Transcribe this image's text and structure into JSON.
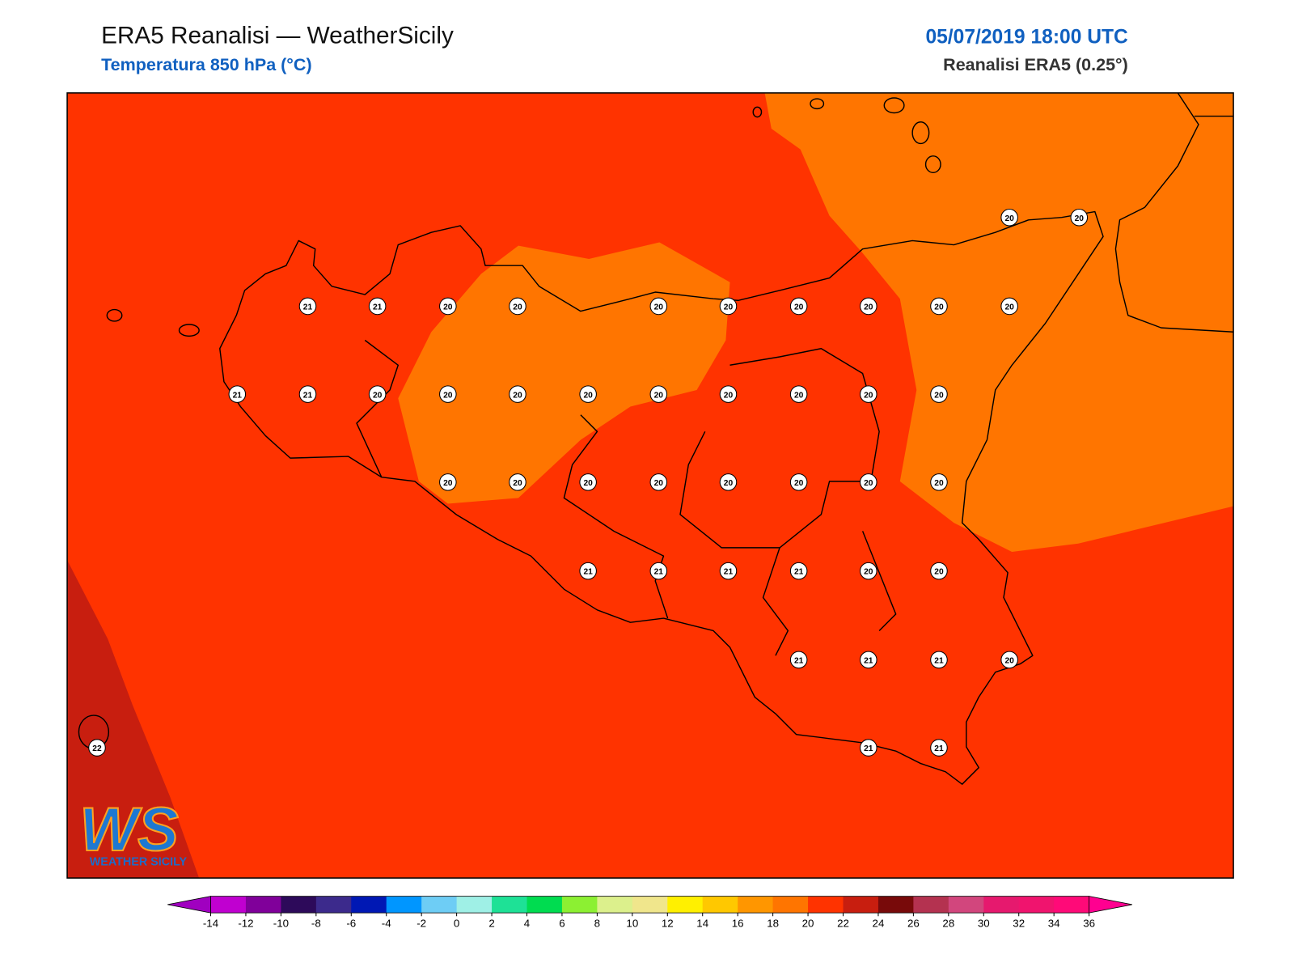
{
  "header": {
    "title": "ERA5 Reanalisi — WeatherSicily",
    "subtitle": "Temperatura 850 hPa (°C)",
    "date": "05/07/2019 18:00 UTC",
    "source": "Reanalisi ERA5 (0.25°)"
  },
  "stations": [
    20,
    20,
    21,
    21,
    20,
    20,
    20,
    20,
    20,
    20,
    20,
    20,
    21,
    21,
    20,
    20,
    20,
    20,
    20,
    20,
    20,
    20,
    20,
    20,
    20,
    20,
    20,
    20,
    20,
    20,
    20,
    21,
    21,
    21,
    21,
    20,
    20,
    21,
    21,
    21,
    20,
    22,
    21,
    21
  ],
  "colorbar": {
    "ticks": [
      -14,
      -12,
      -10,
      -8,
      -6,
      -4,
      -2,
      0,
      2,
      4,
      6,
      8,
      10,
      12,
      14,
      16,
      18,
      20,
      22,
      24,
      26,
      28,
      30,
      32,
      34,
      36
    ],
    "colors": [
      "#c000d0",
      "#80009a",
      "#2d0a5a",
      "#3c2a8c",
      "#0018b4",
      "#0096ff",
      "#6ecdf5",
      "#9ff0e6",
      "#1ee196",
      "#00dc50",
      "#8cf032",
      "#dcf08c",
      "#f0e68c",
      "#fff000",
      "#ffc800",
      "#ff9600",
      "#ff7500",
      "#ff3300",
      "#c81e0f",
      "#780a0a",
      "#b43250",
      "#d2467d",
      "#e6196e",
      "#f0146e",
      "#ff0a78"
    ],
    "extend_colors": [
      "#a000c0",
      "#ff0090"
    ]
  },
  "logo": {
    "initials": "WS",
    "name": "WEATHER SICILY"
  }
}
